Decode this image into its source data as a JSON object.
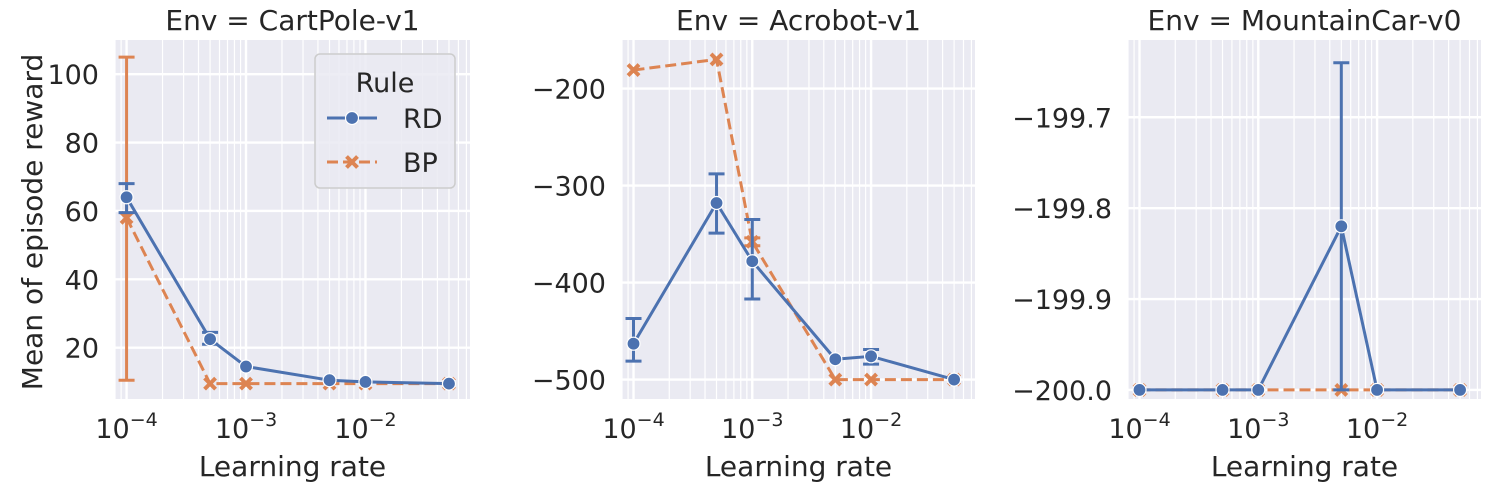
{
  "figure": {
    "ylabel": "Mean of episode reward",
    "xlabel": "Learning rate"
  },
  "colors": {
    "panel_bg": "#eaeaf2",
    "grid": "#ffffff",
    "rd": "#4c72b0",
    "bp": "#dd8452",
    "text": "#262626"
  },
  "legend": {
    "title": "Rule",
    "placement": "upper-right of first panel",
    "entries": [
      {
        "label": "RD",
        "marker": "circle",
        "linestyle": "solid"
      },
      {
        "label": "BP",
        "marker": "x",
        "linestyle": "dashed"
      }
    ]
  },
  "chart_data": [
    {
      "type": "line",
      "title": "Env = CartPole-v1",
      "xscale": "log",
      "xlim": [
        8e-05,
        0.075
      ],
      "ylim": [
        5,
        110
      ],
      "xticks": [
        "10^-4",
        "10^-3",
        "10^-2"
      ],
      "yticks": [
        20,
        40,
        60,
        80,
        100
      ],
      "grid": true,
      "series": [
        {
          "name": "RD",
          "x": [
            0.0001,
            0.0005,
            0.001,
            0.005,
            0.01,
            0.05
          ],
          "y": [
            64,
            22.5,
            14.5,
            10.5,
            10,
            9.5
          ],
          "err_low": [
            59.5,
            21,
            null,
            null,
            null,
            null
          ],
          "err_high": [
            68,
            24.5,
            null,
            null,
            null,
            null
          ]
        },
        {
          "name": "BP",
          "x": [
            0.0001,
            0.0005,
            0.001,
            0.005,
            0.01,
            0.05
          ],
          "y": [
            58,
            9.5,
            9.5,
            9.5,
            9.5,
            9.5
          ],
          "err_low": [
            10.5,
            null,
            null,
            null,
            null,
            null
          ],
          "err_high": [
            105,
            null,
            null,
            null,
            null,
            null
          ]
        }
      ]
    },
    {
      "type": "line",
      "title": "Env = Acrobot-v1",
      "xscale": "log",
      "xlim": [
        8e-05,
        0.075
      ],
      "ylim": [
        -520,
        -150
      ],
      "xticks": [
        "10^-4",
        "10^-3",
        "10^-2"
      ],
      "yticks": [
        -200,
        -300,
        -400,
        -500
      ],
      "grid": true,
      "series": [
        {
          "name": "RD",
          "x": [
            0.0001,
            0.0005,
            0.001,
            0.005,
            0.01,
            0.05
          ],
          "y": [
            -463,
            -318,
            -378,
            -479,
            -476,
            -500
          ],
          "err_low": [
            -481,
            -349,
            -417,
            null,
            -484,
            null
          ],
          "err_high": [
            -437,
            -288,
            -335,
            null,
            -469,
            null
          ]
        },
        {
          "name": "BP",
          "x": [
            0.0001,
            0.0005,
            0.001,
            0.005,
            0.01,
            0.05
          ],
          "y": [
            -181,
            -170,
            -358,
            -500,
            -500,
            -500
          ],
          "err_low": [
            null,
            null,
            -362,
            null,
            null,
            null
          ],
          "err_high": [
            null,
            null,
            -354,
            null,
            null,
            null
          ]
        }
      ]
    },
    {
      "type": "line",
      "title": "Env = MountainCar-v0",
      "xscale": "log",
      "xlim": [
        8e-05,
        0.075
      ],
      "ylim": [
        -200.01,
        -199.615
      ],
      "xticks": [
        "10^-4",
        "10^-3",
        "10^-2"
      ],
      "yticks": [
        -199.7,
        -199.8,
        -199.9,
        -200.0
      ],
      "ytick_labels": [
        "−199.7",
        "−199.8",
        "−199.9",
        "−200.0"
      ],
      "grid": true,
      "series": [
        {
          "name": "RD",
          "x": [
            0.0001,
            0.0005,
            0.001,
            0.005,
            0.01,
            0.05
          ],
          "y": [
            -200,
            -200,
            -200,
            -199.82,
            -200,
            -200
          ],
          "err_low": [
            null,
            null,
            null,
            -200,
            null,
            null
          ],
          "err_high": [
            null,
            null,
            null,
            -199.64,
            null,
            null
          ]
        },
        {
          "name": "BP",
          "x": [
            0.0001,
            0.0005,
            0.001,
            0.005,
            0.01,
            0.05
          ],
          "y": [
            -200,
            -200,
            -200,
            -200,
            -200,
            -200
          ],
          "err_low": [
            null,
            null,
            null,
            null,
            null,
            null
          ],
          "err_high": [
            null,
            null,
            null,
            null,
            null,
            null
          ]
        }
      ]
    }
  ]
}
